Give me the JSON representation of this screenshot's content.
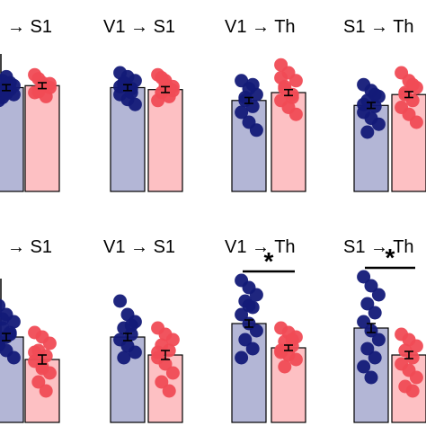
{
  "colors": {
    "group_a_bar": "#b3b6d6",
    "group_a_dot": "#131a78",
    "group_b_bar": "#fdc0c3",
    "group_b_dot": "#f04b55",
    "axis": "#000000"
  },
  "chart_data": [
    {
      "type": "bar",
      "title": "→ S1",
      "row": 1,
      "groups": [
        {
          "mean": 1.05,
          "sem": 0.03,
          "points": [
            1.0,
            1.08,
            0.98,
            1.12,
            1.03,
            0.92,
            1.16,
            1.07,
            0.95,
            1.1,
            1.02,
            0.99
          ]
        },
        {
          "mean": 1.07,
          "sem": 0.03,
          "points": [
            1.0,
            1.1,
            1.05,
            1.14,
            0.96,
            1.18,
            1.06,
            1.09,
            1.01
          ]
        }
      ],
      "significance": null
    },
    {
      "type": "bar",
      "title": "V1 → S1",
      "row": 1,
      "groups": [
        {
          "mean": 1.05,
          "sem": 0.03,
          "points": [
            1.2,
            1.16,
            1.12,
            1.08,
            1.04,
            0.98,
            0.93,
            0.88,
            1.1,
            1.0,
            1.06
          ]
        },
        {
          "mean": 1.03,
          "sem": 0.03,
          "points": [
            1.18,
            1.12,
            1.06,
            1.0,
            0.96,
            0.92,
            1.08,
            1.02,
            1.15,
            1.04
          ]
        }
      ],
      "significance": null
    },
    {
      "type": "bar",
      "title": "V1 → Th",
      "row": 1,
      "groups": [
        {
          "mean": 0.92,
          "sem": 0.03,
          "points": [
            1.12,
            1.04,
            0.98,
            0.92,
            0.86,
            0.8,
            0.7,
            0.62,
            0.95,
            1.08
          ]
        },
        {
          "mean": 1.0,
          "sem": 0.03,
          "points": [
            1.28,
            1.2,
            1.12,
            1.04,
            0.98,
            0.92,
            0.85,
            0.78,
            1.06,
            0.95,
            1.15
          ]
        }
      ],
      "significance": null
    },
    {
      "type": "bar",
      "title": "S1 → Th",
      "row": 1,
      "groups": [
        {
          "mean": 0.87,
          "sem": 0.03,
          "points": [
            1.08,
            1.02,
            0.96,
            0.92,
            0.86,
            0.8,
            0.74,
            0.68,
            0.6,
            0.98,
            0.88
          ]
        },
        {
          "mean": 0.98,
          "sem": 0.03,
          "points": [
            1.2,
            1.12,
            1.05,
            0.98,
            0.92,
            0.85,
            0.78,
            0.7,
            1.0,
            1.08
          ]
        }
      ],
      "significance": null
    },
    {
      "type": "bar",
      "title": "→ S1",
      "row": 2,
      "groups": [
        {
          "mean": 0.95,
          "sem": 0.04,
          "points": [
            1.3,
            1.2,
            1.12,
            1.05,
            0.98,
            0.9,
            0.8,
            0.72,
            1.15,
            1.0,
            0.86,
            0.95
          ]
        },
        {
          "mean": 0.7,
          "sem": 0.05,
          "points": [
            1.0,
            0.95,
            0.88,
            0.8,
            0.74,
            0.68,
            0.62,
            0.55,
            0.45,
            0.35,
            0.78,
            0.6
          ]
        }
      ],
      "significance": null
    },
    {
      "type": "bar",
      "title": "V1 → S1",
      "row": 2,
      "groups": [
        {
          "mean": 0.95,
          "sem": 0.04,
          "points": [
            1.35,
            1.2,
            1.12,
            1.05,
            0.98,
            0.92,
            0.85,
            0.78,
            0.72,
            1.08
          ]
        },
        {
          "mean": 0.75,
          "sem": 0.05,
          "points": [
            1.05,
            0.98,
            0.92,
            0.86,
            0.8,
            0.72,
            0.65,
            0.55,
            0.45,
            0.35,
            0.78
          ]
        }
      ],
      "significance": null
    },
    {
      "type": "bar",
      "title": "V1 → Th",
      "row": 2,
      "groups": [
        {
          "mean": 1.1,
          "sem": 0.04,
          "points": [
            1.58,
            1.5,
            1.42,
            1.35,
            1.28,
            1.2,
            1.1,
            1.02,
            0.92,
            0.82,
            0.72,
            1.3
          ]
        },
        {
          "mean": 0.83,
          "sem": 0.03,
          "points": [
            1.05,
            1.0,
            0.95,
            0.9,
            0.85,
            0.8,
            0.75,
            0.7,
            0.62,
            0.92,
            0.78
          ]
        }
      ],
      "significance": "*"
    },
    {
      "type": "bar",
      "title": "S1 → Th",
      "row": 2,
      "groups": [
        {
          "mean": 1.05,
          "sem": 0.05,
          "points": [
            1.62,
            1.52,
            1.42,
            1.32,
            1.22,
            1.12,
            1.02,
            0.92,
            0.82,
            0.72,
            0.62,
            0.5
          ]
        },
        {
          "mean": 0.75,
          "sem": 0.04,
          "points": [
            0.98,
            0.92,
            0.85,
            0.8,
            0.72,
            0.65,
            0.58,
            0.5,
            0.4,
            0.35
          ]
        }
      ],
      "significance": "*"
    }
  ]
}
